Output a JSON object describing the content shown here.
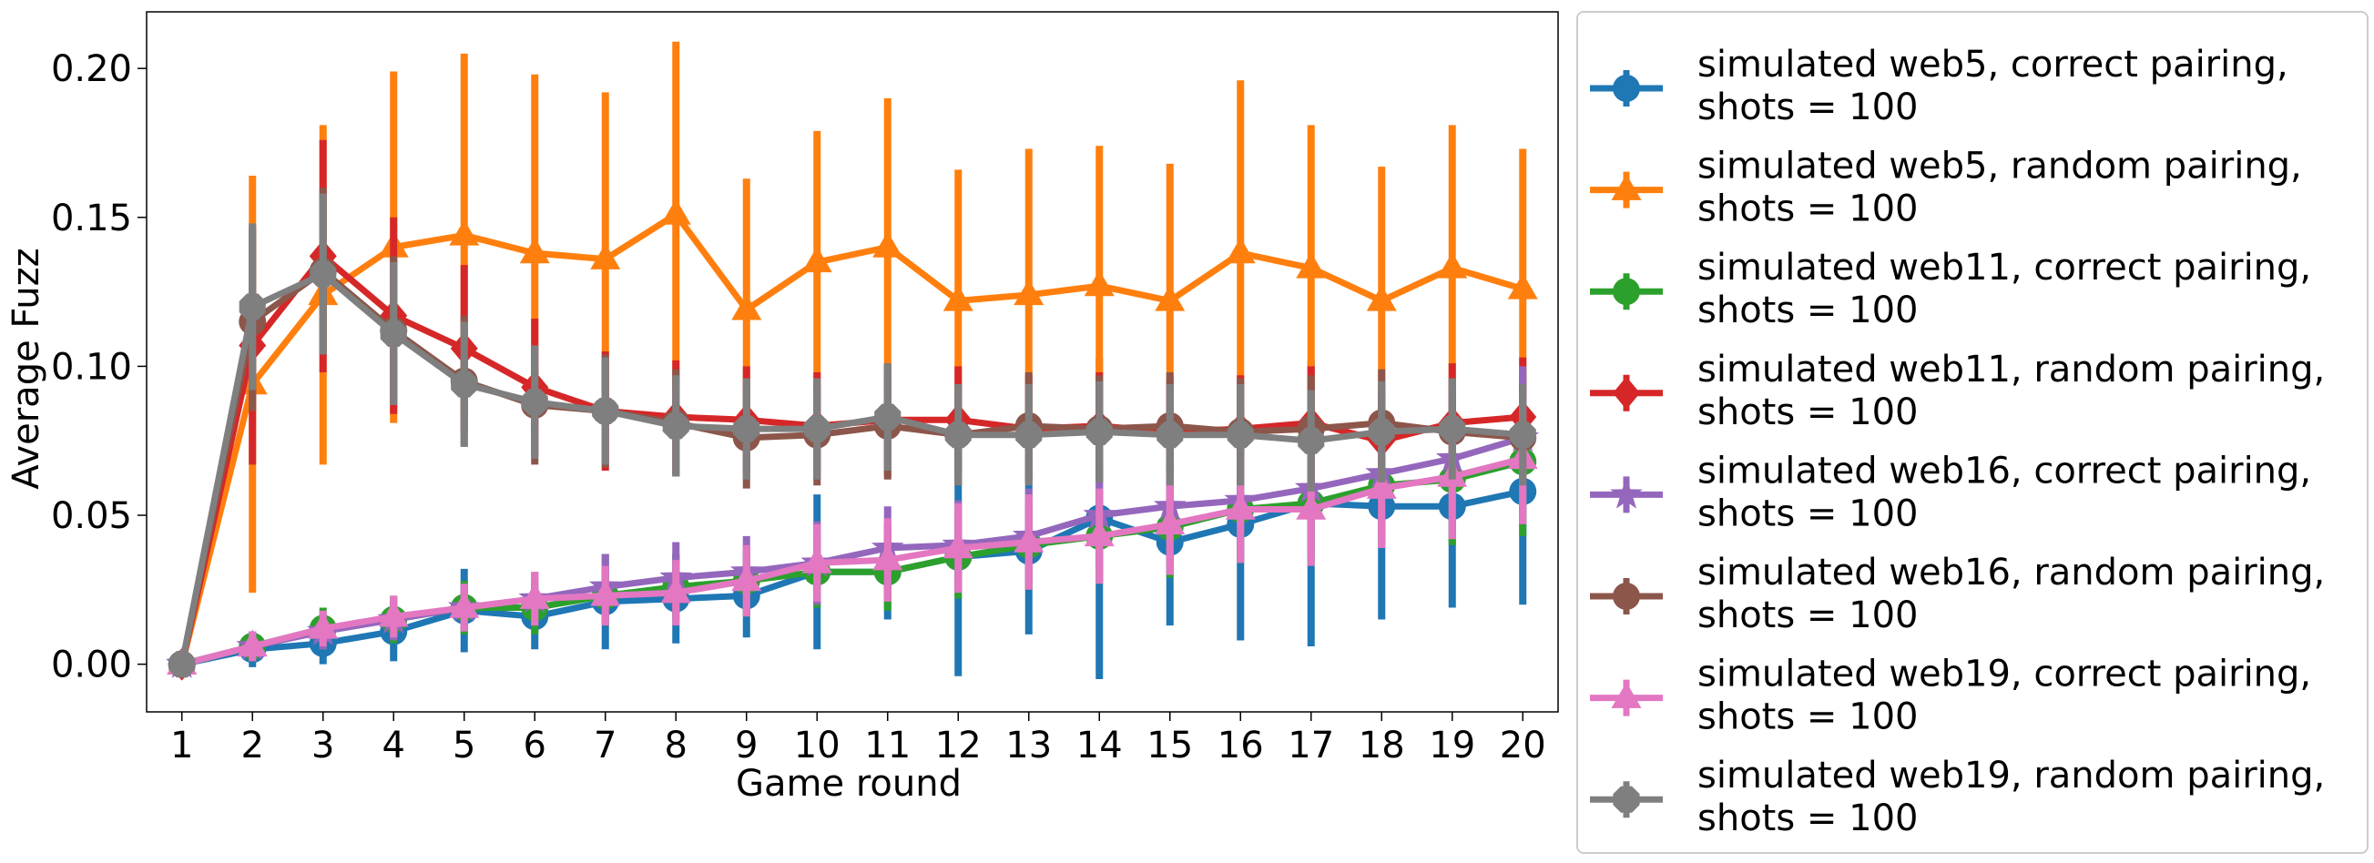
{
  "chart_data": {
    "type": "line",
    "title": "",
    "xlabel": "Game round",
    "ylabel": "Average Fuzz",
    "x": [
      1,
      2,
      3,
      4,
      5,
      6,
      7,
      8,
      9,
      10,
      11,
      12,
      13,
      14,
      15,
      16,
      17,
      18,
      19,
      20
    ],
    "xlim": [
      0.5,
      20.5
    ],
    "ylim": [
      -0.016,
      0.219
    ],
    "yticks": [
      "0.00",
      "0.05",
      "0.10",
      "0.15",
      "0.20"
    ],
    "ytick_values": [
      0,
      0.05,
      0.1,
      0.15,
      0.2
    ],
    "grid": false,
    "legend_position": "outside-right",
    "series": [
      {
        "name": "simulated web5, correct pairing,",
        "name_line2": "shots = 100",
        "color": "#1f77b4",
        "marker": "circle",
        "values": [
          0.0,
          0.005,
          0.007,
          0.011,
          0.018,
          0.016,
          0.021,
          0.022,
          0.023,
          0.031,
          0.031,
          0.036,
          0.038,
          0.049,
          0.041,
          0.047,
          0.054,
          0.053,
          0.053,
          0.058
        ],
        "errors": [
          0.0,
          0.006,
          0.007,
          0.01,
          0.014,
          0.011,
          0.016,
          0.015,
          0.014,
          0.026,
          0.016,
          0.04,
          0.028,
          0.054,
          0.028,
          0.039,
          0.048,
          0.038,
          0.034,
          0.038
        ]
      },
      {
        "name": "simulated web5, random pairing,",
        "name_line2": "shots = 100",
        "color": "#ff7f0e",
        "marker": "triangle",
        "values": [
          0.0,
          0.094,
          0.124,
          0.14,
          0.144,
          0.138,
          0.136,
          0.151,
          0.119,
          0.135,
          0.14,
          0.122,
          0.124,
          0.127,
          0.122,
          0.138,
          0.133,
          0.122,
          0.133,
          0.126
        ],
        "errors": [
          0.0,
          0.07,
          0.057,
          0.059,
          0.061,
          0.06,
          0.056,
          0.058,
          0.044,
          0.044,
          0.05,
          0.044,
          0.049,
          0.047,
          0.046,
          0.058,
          0.048,
          0.045,
          0.048,
          0.047
        ]
      },
      {
        "name": "simulated web11, correct pairing,",
        "name_line2": "shots = 100",
        "color": "#2ca02c",
        "marker": "circle",
        "values": [
          0.0,
          0.006,
          0.012,
          0.015,
          0.019,
          0.019,
          0.023,
          0.026,
          0.028,
          0.031,
          0.031,
          0.036,
          0.04,
          0.043,
          0.046,
          0.052,
          0.054,
          0.06,
          0.062,
          0.068
        ],
        "errors": [
          0.0,
          0.005,
          0.007,
          0.008,
          0.009,
          0.009,
          0.01,
          0.011,
          0.012,
          0.012,
          0.013,
          0.014,
          0.015,
          0.016,
          0.017,
          0.018,
          0.02,
          0.02,
          0.022,
          0.025
        ]
      },
      {
        "name": "simulated web11, random pairing,",
        "name_line2": "shots = 100",
        "color": "#d62728",
        "marker": "diamond",
        "values": [
          0.0,
          0.107,
          0.137,
          0.117,
          0.106,
          0.093,
          0.085,
          0.083,
          0.082,
          0.08,
          0.082,
          0.082,
          0.079,
          0.08,
          0.078,
          0.079,
          0.081,
          0.075,
          0.081,
          0.083
        ],
        "errors": [
          0.0,
          0.04,
          0.039,
          0.033,
          0.028,
          0.023,
          0.02,
          0.019,
          0.018,
          0.018,
          0.019,
          0.018,
          0.018,
          0.018,
          0.018,
          0.018,
          0.019,
          0.018,
          0.02,
          0.02
        ]
      },
      {
        "name": "simulated web16, correct pairing,",
        "name_line2": "shots = 100",
        "color": "#9467bd",
        "marker": "star",
        "values": [
          0.0,
          0.006,
          0.011,
          0.015,
          0.019,
          0.022,
          0.026,
          0.029,
          0.031,
          0.034,
          0.039,
          0.04,
          0.043,
          0.05,
          0.053,
          0.055,
          0.059,
          0.064,
          0.069,
          0.076
        ],
        "errors": [
          0.0,
          0.005,
          0.006,
          0.007,
          0.008,
          0.009,
          0.011,
          0.012,
          0.012,
          0.014,
          0.014,
          0.015,
          0.016,
          0.018,
          0.019,
          0.019,
          0.02,
          0.021,
          0.022,
          0.024
        ]
      },
      {
        "name": "simulated web16, random pairing,",
        "name_line2": "shots = 100",
        "color": "#8c564b",
        "marker": "circle",
        "values": [
          0.0,
          0.115,
          0.132,
          0.112,
          0.095,
          0.087,
          0.085,
          0.081,
          0.076,
          0.077,
          0.08,
          0.077,
          0.08,
          0.079,
          0.08,
          0.078,
          0.079,
          0.081,
          0.078,
          0.076
        ],
        "errors": [
          0.0,
          0.03,
          0.028,
          0.025,
          0.022,
          0.02,
          0.019,
          0.018,
          0.017,
          0.017,
          0.018,
          0.017,
          0.018,
          0.018,
          0.018,
          0.018,
          0.018,
          0.018,
          0.018,
          0.018
        ]
      },
      {
        "name": "simulated web19, correct pairing,",
        "name_line2": "shots = 100",
        "color": "#e377c2",
        "marker": "triangle",
        "values": [
          0.0,
          0.006,
          0.012,
          0.016,
          0.019,
          0.022,
          0.023,
          0.024,
          0.028,
          0.034,
          0.035,
          0.039,
          0.041,
          0.043,
          0.047,
          0.052,
          0.052,
          0.059,
          0.063,
          0.069
        ],
        "errors": [
          0.0,
          0.005,
          0.006,
          0.007,
          0.008,
          0.009,
          0.01,
          0.011,
          0.012,
          0.013,
          0.014,
          0.015,
          0.016,
          0.016,
          0.017,
          0.018,
          0.019,
          0.02,
          0.021,
          0.022
        ]
      },
      {
        "name": "simulated web19, random pairing,",
        "name_line2": "shots = 100",
        "color": "#7f7f7f",
        "marker": "octagon",
        "values": [
          0.0,
          0.12,
          0.131,
          0.111,
          0.094,
          0.088,
          0.085,
          0.08,
          0.079,
          0.079,
          0.083,
          0.077,
          0.077,
          0.078,
          0.077,
          0.077,
          0.075,
          0.078,
          0.079,
          0.077
        ],
        "errors": [
          0.0,
          0.028,
          0.027,
          0.024,
          0.021,
          0.019,
          0.018,
          0.017,
          0.017,
          0.017,
          0.018,
          0.017,
          0.017,
          0.017,
          0.017,
          0.017,
          0.017,
          0.017,
          0.017,
          0.017
        ]
      }
    ]
  }
}
